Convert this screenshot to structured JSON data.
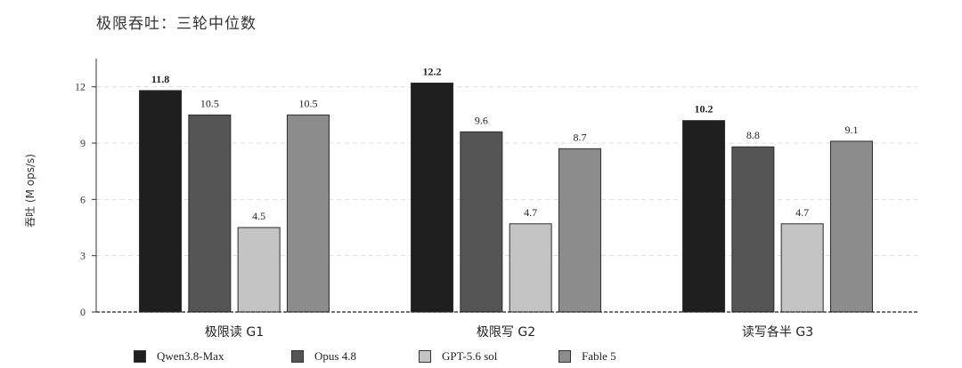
{
  "chart_data": {
    "type": "bar",
    "title": "极限吞吐：三轮中位数",
    "ylabel": "吞吐 (M ops/s)",
    "xlabel": "",
    "ylim": [
      0,
      13.5
    ],
    "yticks": [
      0,
      3,
      6,
      9,
      12
    ],
    "grid": true,
    "legend_position": "bottom",
    "categories": [
      "极限读 G1",
      "极限写 G2",
      "读写各半 G3"
    ],
    "series": [
      {
        "name": "Qwen3.8-Max",
        "color": "#1f1f1f",
        "values": [
          11.8,
          12.2,
          10.2
        ],
        "labels": [
          "11.8",
          "12.2",
          "10.2"
        ],
        "bold": true
      },
      {
        "name": "Opus 4.8",
        "color": "#555555",
        "values": [
          10.5,
          9.6,
          8.8
        ],
        "labels": [
          "10.5",
          "9.6",
          "8.8"
        ],
        "bold": false
      },
      {
        "name": "GPT-5.6 sol",
        "color": "#c4c4c4",
        "values": [
          4.5,
          4.7,
          4.7
        ],
        "labels": [
          "4.5",
          "4.7",
          "4.7"
        ],
        "bold": false
      },
      {
        "name": "Fable 5",
        "color": "#8c8c8c",
        "values": [
          10.5,
          8.7,
          9.1
        ],
        "labels": [
          "10.5",
          "8.7",
          "9.1"
        ],
        "bold": false
      }
    ]
  }
}
